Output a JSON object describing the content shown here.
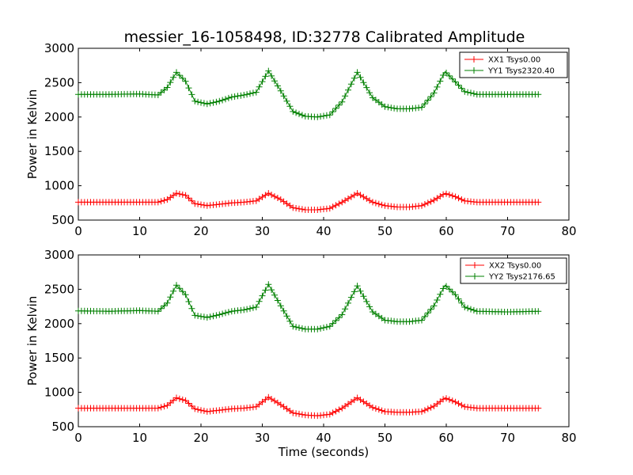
{
  "chart_data": [
    {
      "type": "line",
      "title": "messier_16-1058498, ID:32778 Calibrated Amplitude",
      "xlabel": "",
      "ylabel": "Power in Kelvin",
      "xlim": [
        0,
        80
      ],
      "ylim": [
        500,
        3000
      ],
      "xticks": [
        0,
        10,
        20,
        30,
        40,
        50,
        60,
        70,
        80
      ],
      "yticks": [
        500,
        1000,
        1500,
        2000,
        2500,
        3000
      ],
      "grid": false,
      "legend_position": "top-right",
      "marker": "plus",
      "series": [
        {
          "name": "XX1 Tsys0.00",
          "color": "#ff0000",
          "x": [
            0,
            5,
            10,
            13,
            14.5,
            16,
            17.5,
            19,
            21,
            23,
            25,
            27,
            29,
            31,
            33,
            35,
            37,
            39,
            41,
            43,
            45.5,
            48,
            50,
            52,
            54,
            56,
            58,
            59.8,
            61.5,
            63,
            65,
            70,
            75
          ],
          "y": [
            760,
            760,
            760,
            760,
            800,
            890,
            860,
            740,
            710,
            730,
            750,
            760,
            780,
            890,
            800,
            680,
            650,
            650,
            670,
            760,
            890,
            760,
            710,
            690,
            690,
            710,
            790,
            890,
            840,
            780,
            760,
            760,
            760
          ]
        },
        {
          "name": "YY1 Tsys2320.40",
          "color": "#008000",
          "x": [
            0,
            5,
            10,
            13,
            14.5,
            16,
            17.5,
            19,
            21,
            23,
            25,
            27,
            29,
            31,
            33,
            35,
            37,
            39,
            41,
            43,
            45.5,
            48,
            50,
            52,
            54,
            56,
            58,
            59.8,
            61.5,
            63,
            65,
            70,
            75
          ],
          "y": [
            2330,
            2330,
            2335,
            2320,
            2430,
            2650,
            2520,
            2230,
            2190,
            2230,
            2290,
            2320,
            2360,
            2670,
            2380,
            2080,
            2010,
            2000,
            2030,
            2220,
            2650,
            2280,
            2150,
            2120,
            2120,
            2140,
            2350,
            2660,
            2510,
            2370,
            2330,
            2330,
            2330
          ]
        }
      ]
    },
    {
      "type": "line",
      "title": "",
      "xlabel": "Time (seconds)",
      "ylabel": "Power in Kelvin",
      "xlim": [
        0,
        80
      ],
      "ylim": [
        500,
        3000
      ],
      "xticks": [
        0,
        10,
        20,
        30,
        40,
        50,
        60,
        70,
        80
      ],
      "yticks": [
        500,
        1000,
        1500,
        2000,
        2500,
        3000
      ],
      "grid": false,
      "legend_position": "top-right",
      "marker": "plus",
      "series": [
        {
          "name": "XX2 Tsys0.00",
          "color": "#ff0000",
          "x": [
            0,
            5,
            10,
            13,
            14.5,
            16,
            17.5,
            19,
            21,
            23,
            25,
            27,
            29,
            31,
            33,
            35,
            37,
            39,
            41,
            43,
            45.5,
            48,
            50,
            52,
            54,
            56,
            58,
            59.8,
            61.5,
            63,
            65,
            70,
            75
          ],
          "y": [
            770,
            770,
            770,
            770,
            810,
            920,
            880,
            760,
            720,
            740,
            760,
            770,
            790,
            930,
            820,
            700,
            670,
            660,
            680,
            770,
            920,
            780,
            720,
            710,
            710,
            720,
            800,
            920,
            860,
            790,
            770,
            770,
            770
          ]
        },
        {
          "name": "YY2 Tsys2176.65",
          "color": "#008000",
          "x": [
            0,
            5,
            10,
            13,
            14.5,
            16,
            17.5,
            19,
            21,
            23,
            25,
            27,
            29,
            31,
            33,
            35,
            37,
            39,
            41,
            43,
            45.5,
            48,
            50,
            52,
            54,
            56,
            58,
            59.8,
            61.5,
            63,
            65,
            70,
            75
          ],
          "y": [
            2185,
            2180,
            2190,
            2180,
            2300,
            2560,
            2420,
            2120,
            2090,
            2130,
            2180,
            2200,
            2240,
            2570,
            2260,
            1960,
            1920,
            1920,
            1960,
            2130,
            2550,
            2170,
            2050,
            2030,
            2030,
            2050,
            2260,
            2560,
            2420,
            2240,
            2180,
            2170,
            2180
          ]
        }
      ]
    }
  ]
}
